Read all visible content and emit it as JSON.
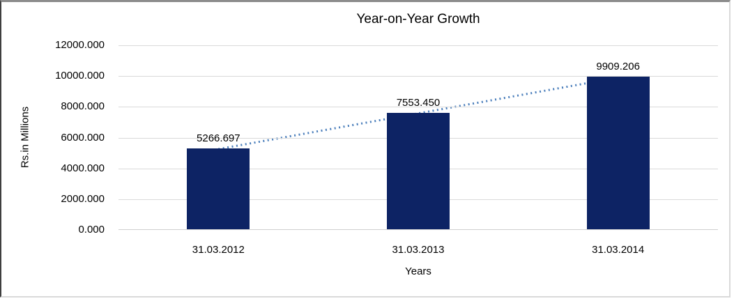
{
  "chart_data": {
    "type": "bar",
    "title": "Year-on-Year Growth",
    "xlabel": "Years",
    "ylabel": "Rs.in Millions",
    "categories": [
      "31.03.2012",
      "31.03.2013",
      "31.03.2014"
    ],
    "values": [
      5266.697,
      7553.45,
      9909.206
    ],
    "data_labels": [
      "5266.697",
      "7553.450",
      "9909.206"
    ],
    "ylim": [
      0,
      12000
    ],
    "ytick_step": 2000,
    "yticks": [
      "12000.000",
      "10000.000",
      "8000.000",
      "6000.000",
      "4000.000",
      "2000.000",
      "0.000"
    ],
    "grid": "horizontal",
    "legend": "none",
    "trendline": {
      "type": "linear",
      "style": "dotted"
    },
    "colors": {
      "bar": "#0d2364",
      "trendline": "#4a7ebb",
      "gridline": "#d9d9d9",
      "axis_line": "#cfcfcf",
      "text": "#000000"
    }
  }
}
